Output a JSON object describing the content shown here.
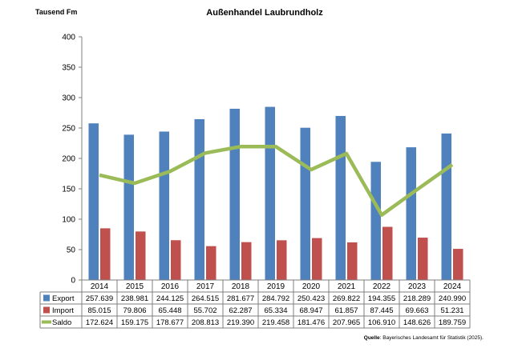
{
  "chart_data": {
    "type": "bar",
    "title": "Außenhandel Laubrundholz",
    "ylabel": "Tausend Fm",
    "xlabel": "",
    "ylim": [
      0,
      400
    ],
    "yticks": [
      "0",
      "50",
      "100",
      "150",
      "200",
      "250",
      "300",
      "350",
      "400"
    ],
    "grid": false,
    "legend": "table-left",
    "categories": [
      "2014",
      "2015",
      "2016",
      "2017",
      "2018",
      "2019",
      "2020",
      "2021",
      "2022",
      "2023",
      "2024"
    ],
    "series": [
      {
        "name": "Export",
        "type": "bar",
        "color": "#4F81BD",
        "values": [
          257.639,
          238.981,
          244.125,
          264.515,
          281.677,
          284.792,
          250.423,
          269.822,
          194.355,
          218.289,
          240.99
        ],
        "labels": [
          "257.639",
          "238.981",
          "244.125",
          "264.515",
          "281.677",
          "284.792",
          "250.423",
          "269.822",
          "194.355",
          "218.289",
          "240.990"
        ]
      },
      {
        "name": "Import",
        "type": "bar",
        "color": "#C0504D",
        "values": [
          85.015,
          79.806,
          65.448,
          55.702,
          62.287,
          65.334,
          68.947,
          61.857,
          87.445,
          69.663,
          51.231
        ],
        "labels": [
          "85.015",
          "79.806",
          "65.448",
          "55.702",
          "62.287",
          "65.334",
          "68.947",
          "61.857",
          "87.445",
          "69.663",
          "51.231"
        ]
      },
      {
        "name": "Saldo",
        "type": "line",
        "color": "#9BBB59",
        "values": [
          172.624,
          159.175,
          178.677,
          208.813,
          219.39,
          219.458,
          181.476,
          207.965,
          106.91,
          148.626,
          189.759
        ],
        "labels": [
          "172.624",
          "159.175",
          "178.677",
          "208.813",
          "219.390",
          "219.458",
          "181.476",
          "207.965",
          "106.910",
          "148.626",
          "189.759"
        ]
      }
    ],
    "source_label": "Quelle",
    "source_text": ": Bayerisches Landesamt für Statistik (2025)."
  }
}
